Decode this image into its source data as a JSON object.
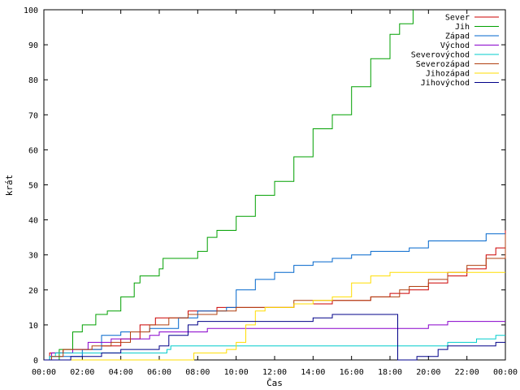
{
  "chart_data": {
    "type": "line",
    "xlabel": "Čas",
    "ylabel": "krát",
    "xlim": [
      0,
      24
    ],
    "ylim": [
      0,
      100
    ],
    "x_ticks": [
      "00:00",
      "02:00",
      "04:00",
      "06:00",
      "08:00",
      "10:00",
      "12:00",
      "14:00",
      "16:00",
      "18:00",
      "20:00",
      "22:00",
      "00:00"
    ],
    "y_ticks": [
      "0",
      "10",
      "20",
      "30",
      "40",
      "50",
      "60",
      "70",
      "80",
      "90",
      "100"
    ],
    "x_tick_values": [
      0,
      2,
      4,
      6,
      8,
      10,
      12,
      14,
      16,
      18,
      20,
      22,
      24
    ],
    "y_tick_values": [
      0,
      10,
      20,
      30,
      40,
      50,
      60,
      70,
      80,
      90,
      100
    ],
    "legend_position": "top-right",
    "series": [
      {
        "name": "Sever",
        "color": "#cc0000",
        "points": [
          [
            0,
            0
          ],
          [
            0.3,
            2
          ],
          [
            1.0,
            3
          ],
          [
            2.0,
            3
          ],
          [
            3.0,
            4
          ],
          [
            4.0,
            6
          ],
          [
            5.0,
            10
          ],
          [
            5.8,
            12
          ],
          [
            7.5,
            14
          ],
          [
            9.0,
            15
          ],
          [
            12.0,
            15
          ],
          [
            13.0,
            16
          ],
          [
            15.0,
            17
          ],
          [
            17.0,
            18
          ],
          [
            18.0,
            19
          ],
          [
            19.0,
            20
          ],
          [
            20.0,
            22
          ],
          [
            21.0,
            24
          ],
          [
            22.0,
            26
          ],
          [
            23.0,
            30
          ],
          [
            23.5,
            32
          ],
          [
            24,
            37
          ]
        ]
      },
      {
        "name": "Jih",
        "color": "#00a000",
        "points": [
          [
            0,
            0
          ],
          [
            0.8,
            3
          ],
          [
            1.5,
            8
          ],
          [
            2.0,
            10
          ],
          [
            2.7,
            13
          ],
          [
            3.3,
            14
          ],
          [
            4.0,
            18
          ],
          [
            4.7,
            22
          ],
          [
            5.0,
            24
          ],
          [
            6.0,
            26
          ],
          [
            6.2,
            29
          ],
          [
            7.7,
            29
          ],
          [
            8.0,
            31
          ],
          [
            8.5,
            35
          ],
          [
            9.0,
            37
          ],
          [
            10.0,
            41
          ],
          [
            11.0,
            47
          ],
          [
            12.0,
            51
          ],
          [
            13.0,
            58
          ],
          [
            14.0,
            66
          ],
          [
            15.0,
            70
          ],
          [
            16.0,
            78
          ],
          [
            17.0,
            86
          ],
          [
            18.0,
            93
          ],
          [
            18.5,
            96
          ],
          [
            19.2,
            100
          ]
        ]
      },
      {
        "name": "Západ",
        "color": "#0066cc",
        "points": [
          [
            0,
            0
          ],
          [
            0.3,
            1
          ],
          [
            1.0,
            1
          ],
          [
            2.0,
            3
          ],
          [
            3.0,
            7
          ],
          [
            4.0,
            8
          ],
          [
            5.5,
            9
          ],
          [
            7.0,
            12
          ],
          [
            8.0,
            14
          ],
          [
            9.5,
            15
          ],
          [
            10.0,
            20
          ],
          [
            11.0,
            23
          ],
          [
            12.0,
            25
          ],
          [
            13.0,
            27
          ],
          [
            14.0,
            28
          ],
          [
            15.0,
            29
          ],
          [
            16.0,
            30
          ],
          [
            17.0,
            31
          ],
          [
            18.0,
            31
          ],
          [
            19.0,
            32
          ],
          [
            20.0,
            34
          ],
          [
            21.0,
            34
          ],
          [
            22.0,
            34
          ],
          [
            23.0,
            36
          ],
          [
            24,
            36
          ]
        ]
      },
      {
        "name": "Východ",
        "color": "#8800cc",
        "points": [
          [
            0,
            0
          ],
          [
            0.4,
            2
          ],
          [
            1.5,
            3
          ],
          [
            2.3,
            5
          ],
          [
            3.5,
            6
          ],
          [
            5.5,
            7
          ],
          [
            6.0,
            8
          ],
          [
            7.5,
            8
          ],
          [
            8.5,
            9
          ],
          [
            14.5,
            9
          ],
          [
            20.0,
            10
          ],
          [
            21.0,
            11
          ],
          [
            24,
            11
          ]
        ]
      },
      {
        "name": "Severovýchod",
        "color": "#00cccc",
        "points": [
          [
            0,
            0
          ],
          [
            0.3,
            1
          ],
          [
            0.6,
            2
          ],
          [
            6.0,
            2
          ],
          [
            6.4,
            3
          ],
          [
            6.6,
            4
          ],
          [
            19.5,
            4
          ],
          [
            21.0,
            5
          ],
          [
            22.5,
            6
          ],
          [
            23.5,
            7
          ],
          [
            24,
            7
          ]
        ]
      },
      {
        "name": "Severozápad",
        "color": "#b04010",
        "points": [
          [
            0,
            0
          ],
          [
            0.4,
            1
          ],
          [
            1.0,
            3
          ],
          [
            2.5,
            4
          ],
          [
            3.5,
            5
          ],
          [
            4.5,
            8
          ],
          [
            5.5,
            10
          ],
          [
            6.5,
            12
          ],
          [
            7.5,
            13
          ],
          [
            9.0,
            14
          ],
          [
            10.0,
            15
          ],
          [
            12.0,
            15
          ],
          [
            13.0,
            17
          ],
          [
            16.0,
            17
          ],
          [
            17.0,
            18
          ],
          [
            18.0,
            18
          ],
          [
            18.5,
            20
          ],
          [
            19.0,
            21
          ],
          [
            20.0,
            23
          ],
          [
            21.0,
            25
          ],
          [
            22.0,
            27
          ],
          [
            23.0,
            29
          ],
          [
            24,
            36
          ]
        ]
      },
      {
        "name": "Jihozápad",
        "color": "#ffdd00",
        "points": [
          [
            0,
            0
          ],
          [
            7.6,
            0
          ],
          [
            7.8,
            2
          ],
          [
            9.0,
            2
          ],
          [
            9.5,
            3
          ],
          [
            10.0,
            5
          ],
          [
            10.5,
            10
          ],
          [
            11.0,
            14
          ],
          [
            11.5,
            15
          ],
          [
            12.0,
            15
          ],
          [
            13.0,
            16
          ],
          [
            14.0,
            17
          ],
          [
            15.0,
            18
          ],
          [
            16.0,
            22
          ],
          [
            17.0,
            24
          ],
          [
            18.0,
            25
          ],
          [
            19.0,
            25
          ],
          [
            20.0,
            25
          ],
          [
            22.0,
            25
          ],
          [
            24,
            25
          ]
        ]
      },
      {
        "name": "Jihovýchod",
        "color": "#000088",
        "points": [
          [
            0,
            0
          ],
          [
            1.2,
            0
          ],
          [
            1.4,
            1
          ],
          [
            3.0,
            2
          ],
          [
            4.0,
            3
          ],
          [
            6.0,
            4
          ],
          [
            6.5,
            7
          ],
          [
            7.5,
            10
          ],
          [
            8.0,
            11
          ],
          [
            13.0,
            11
          ],
          [
            14.0,
            12
          ],
          [
            15.0,
            13
          ],
          [
            18.0,
            13
          ],
          [
            18.3,
            13
          ],
          [
            18.4,
            0
          ],
          [
            19.2,
            0
          ],
          [
            19.4,
            1
          ],
          [
            20.0,
            1
          ],
          [
            20.5,
            3
          ],
          [
            21.0,
            4
          ],
          [
            23.0,
            4
          ],
          [
            23.5,
            5
          ],
          [
            24,
            5
          ]
        ]
      }
    ]
  }
}
